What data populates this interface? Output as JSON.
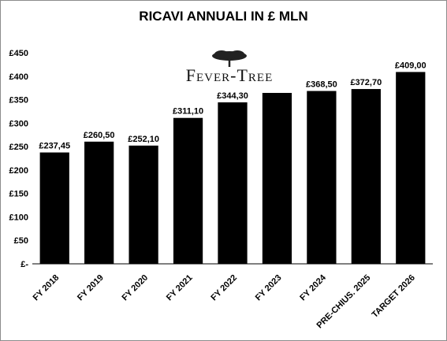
{
  "chart_data": {
    "type": "bar",
    "title": "RICAVI ANNUALI IN £ MLN",
    "xlabel": "",
    "ylabel": "",
    "categories": [
      "FY 2018",
      "FY 2019",
      "FY 2020",
      "FY 2021",
      "FY 2022",
      "FY 2023",
      "FY 2024",
      "PRE-CHIUS. 2025",
      "TARGET 2026"
    ],
    "values": [
      237.45,
      260.5,
      252.1,
      311.1,
      344.3,
      364.4,
      368.5,
      372.7,
      409.0
    ],
    "data_labels": [
      "£237,45",
      "£260,50",
      "£252,10",
      "£311,10",
      "£344,30",
      "",
      "£368,50",
      "£372,70",
      "£409,00"
    ],
    "ylim": [
      0,
      450
    ],
    "yticks": [
      0,
      50,
      100,
      150,
      200,
      250,
      300,
      350,
      400,
      450
    ],
    "ytick_labels": [
      "£-",
      "£50",
      "£100",
      "£150",
      "£200",
      "£250",
      "£300",
      "£350",
      "£400",
      "£450"
    ],
    "bar_color": "#000000",
    "grid": false,
    "legend": "none"
  },
  "logo": {
    "text": "Fever-Tree",
    "icon": "tree-icon"
  }
}
